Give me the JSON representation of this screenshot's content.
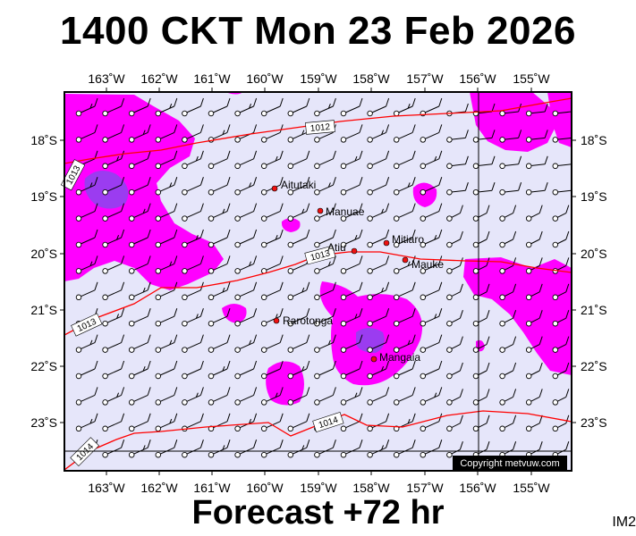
{
  "title": "1400 CKT Mon 23 Feb 2026",
  "footer": "Forecast +72 hr",
  "image_code": "IM2",
  "copyright": "Copyright metvuw.com",
  "axes": {
    "lon_labels": [
      "163˚W",
      "162˚W",
      "161˚W",
      "160˚W",
      "159˚W",
      "158˚W",
      "157˚W",
      "156˚W",
      "155˚W"
    ],
    "lat_labels": [
      "18˚S",
      "19˚S",
      "20˚S",
      "21˚S",
      "22˚S",
      "23˚S"
    ]
  },
  "isobars": [
    "1012",
    "1013",
    "1013",
    "1014",
    "1014",
    "1013"
  ],
  "places": [
    {
      "name": "Aitutaki"
    },
    {
      "name": "Manuae"
    },
    {
      "name": "Mitiaro"
    },
    {
      "name": "Atiu"
    },
    {
      "name": "Mauke"
    },
    {
      "name": "Rarotonga"
    },
    {
      "name": "Mangaia"
    }
  ],
  "colors": {
    "background": "#e6e6fa",
    "rain_light": "#ff00ff",
    "rain_heavy": "#9b3cf0",
    "isobar": "#ff0000"
  }
}
